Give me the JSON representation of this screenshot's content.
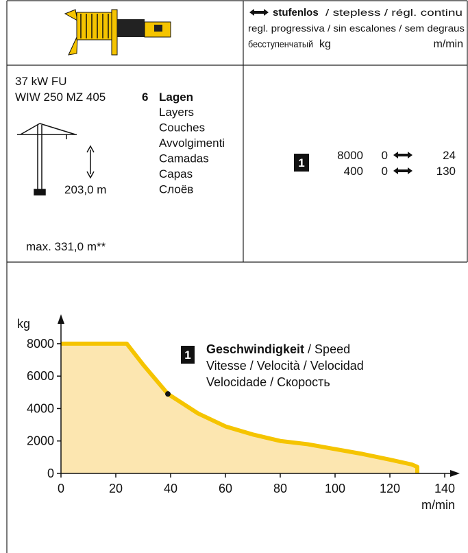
{
  "header": {
    "mode_bold": "stufenlos",
    "mode_rest": "/ stepless / régl. continu",
    "line2": "regl. progressiva / sin escalones / sem degraus",
    "line3": "бесступенчатый",
    "unit_kg": "kg",
    "unit_speed": "m/min"
  },
  "spec": {
    "power": "37 kW FU",
    "model": "WIW 250 MZ 405",
    "layers_count": "6",
    "layers_word": "Lagen",
    "layers_translations": [
      "Layers",
      "Couches",
      "Avvolgimenti",
      "Camadas",
      "Capas",
      "Слоёв"
    ],
    "height": "203,0 m",
    "max_height": "max. 331,0 m**"
  },
  "speeds": {
    "badge": "1",
    "rows": [
      {
        "load": 8000,
        "min": 0,
        "max": 24
      },
      {
        "load": 400,
        "min": 0,
        "max": 130
      }
    ]
  },
  "chart_data": {
    "type": "line",
    "y_label": "kg",
    "x_label": "m/min",
    "x": [
      0,
      24,
      30,
      39,
      50,
      60,
      70,
      80,
      90,
      100,
      110,
      120,
      128,
      130,
      130
    ],
    "series": [
      {
        "color": "#f5c400",
        "fill": "#fce6b0",
        "values": [
          8000,
          8000,
          6700,
          4900,
          3700,
          2900,
          2400,
          2000,
          1800,
          1500,
          1200,
          850,
          550,
          400,
          0
        ]
      }
    ],
    "xlim": [
      0,
      144
    ],
    "ylim": [
      0,
      8800
    ],
    "xticks": [
      0,
      20,
      40,
      60,
      80,
      100,
      120,
      140
    ],
    "yticks": [
      0,
      2000,
      4000,
      6000,
      8000
    ],
    "annotation": {
      "badge": "1",
      "bold": "Geschwindigkeit",
      "rest": "/ Speed",
      "lines": [
        "Vitesse / Velocità / Velocidad",
        "Velocidade / Скорость"
      ],
      "x": 39,
      "y": 4900
    }
  }
}
